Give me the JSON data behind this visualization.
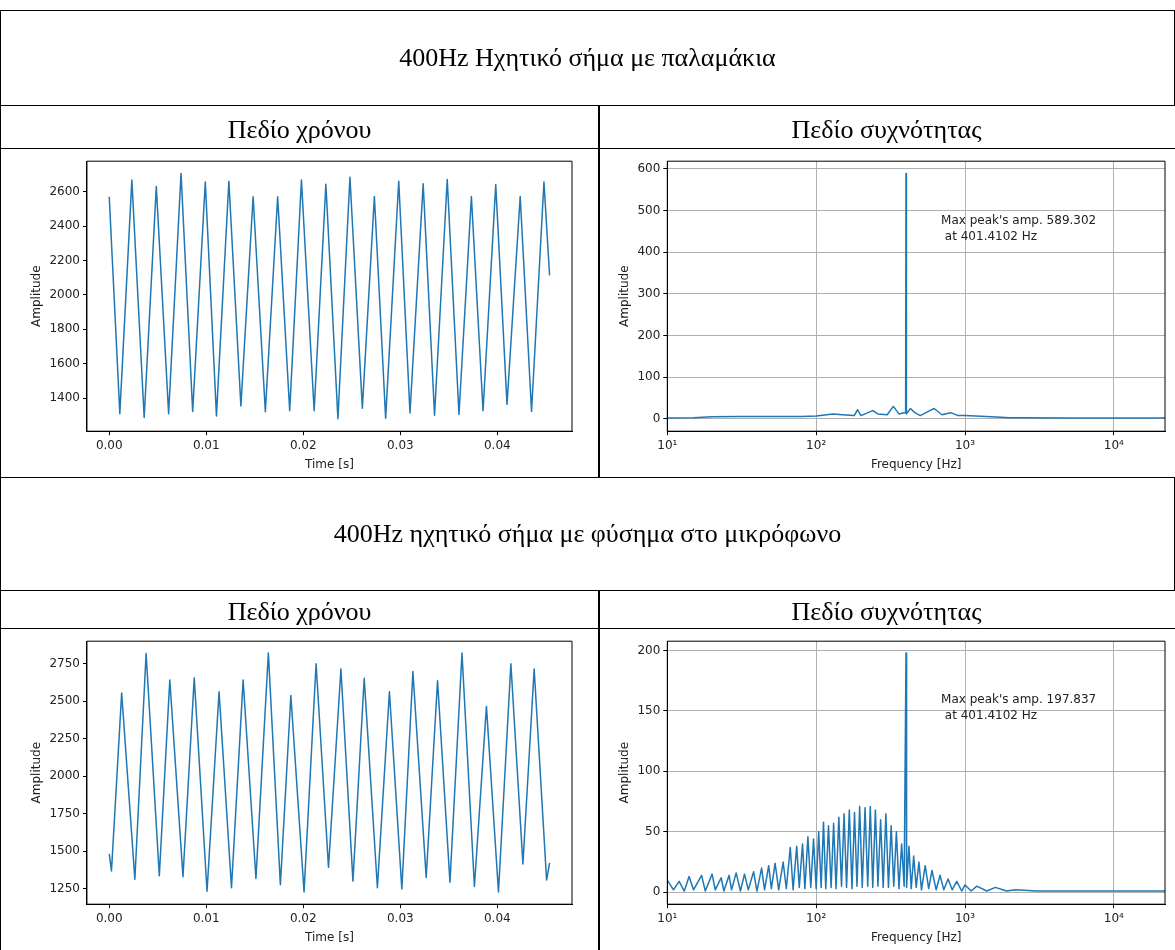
{
  "chart_data": [
    {
      "type": "line",
      "title": "Πεδίο χρόνου",
      "subtitle": "400Hz Ηχητικό σήμα με παλαμάκια",
      "xlabel": "Time [s]",
      "ylabel": "Amplitude",
      "grid": false,
      "legend": false,
      "marker": "none",
      "line_style": "solid",
      "xlim": [
        -0.0023,
        0.0477
      ],
      "ylim": [
        1207,
        2777
      ],
      "xticks": [
        {
          "value": 0,
          "label": "0.00"
        },
        {
          "value": 0.01,
          "label": "0.01"
        },
        {
          "value": 0.02,
          "label": "0.02"
        },
        {
          "value": 0.03,
          "label": "0.03"
        },
        {
          "value": 0.04,
          "label": "0.04"
        }
      ],
      "yticks": [
        1400,
        1600,
        1800,
        2000,
        2200,
        2400,
        2600
      ],
      "series": [
        {
          "color": "#1f77b4",
          "x": [
            0,
            0.00109,
            0.00233,
            0.0036,
            0.00485,
            0.00612,
            0.0074,
            0.0086,
            0.0099,
            0.01105,
            0.01233,
            0.01357,
            0.01483,
            0.01609,
            0.01736,
            0.0186,
            0.01981,
            0.02112,
            0.02233,
            0.02357,
            0.02481,
            0.02609,
            0.02733,
            0.02849,
            0.02984,
            0.031,
            0.03236,
            0.03353,
            0.03484,
            0.03605,
            0.03733,
            0.03853,
            0.03984,
            0.041,
            0.04236,
            0.04353,
            0.04481,
            0.04539
          ],
          "values": [
            2570,
            1309,
            2667,
            1287,
            2630,
            1309,
            2706,
            1322,
            2656,
            1296,
            2660,
            1354,
            2570,
            1320,
            2570,
            1326,
            2667,
            1326,
            2643,
            1280,
            2684,
            1341,
            2572,
            1283,
            2660,
            1313,
            2646,
            1300,
            2670,
            1304,
            2572,
            1326,
            2641,
            1363,
            2572,
            1322,
            2656,
            2113
          ]
        }
      ]
    },
    {
      "type": "line",
      "title": "Πεδίο συχνότητας",
      "xlabel": "Frequency [Hz]",
      "ylabel": "Amplitude",
      "grid": true,
      "legend": false,
      "marker": "none",
      "line_style": "solid",
      "log": "x",
      "xlim": [
        10,
        22050
      ],
      "ylim": [
        -29.5,
        618.7
      ],
      "xticks": [
        {
          "value": 10,
          "label": "10¹"
        },
        {
          "value": 100,
          "label": "10²"
        },
        {
          "value": 1000,
          "label": "10³"
        },
        {
          "value": 10000,
          "label": "10⁴"
        }
      ],
      "yticks": [
        0,
        100,
        200,
        300,
        400,
        500,
        600
      ],
      "annotations": [
        "Max peak's amp. 589.302\n at 401.4102 Hz"
      ],
      "series": [
        {
          "color": "#1f77b4",
          "x": [
            10,
            15,
            20,
            30,
            50,
            80,
            100,
            130,
            150,
            180,
            190,
            200,
            240,
            260,
            300,
            330,
            360,
            390,
            399,
            401.41,
            404,
            430,
            460,
            500,
            580,
            620,
            700,
            800,
            900,
            1000,
            1500,
            2000,
            5000,
            10000,
            22050
          ],
          "values": [
            2,
            3,
            5,
            6,
            6,
            6,
            7,
            12,
            10,
            8,
            22,
            8,
            20,
            12,
            10,
            30,
            12,
            15,
            15,
            589.302,
            12,
            25,
            15,
            8,
            20,
            25,
            10,
            15,
            8,
            8,
            5,
            3,
            2,
            2,
            2
          ]
        }
      ]
    },
    {
      "type": "line",
      "title": "Πεδίο χρόνου",
      "subtitle": "400Hz ηχητικό σήμα με φύσημα στο μικρόφωνο",
      "xlabel": "Time [s]",
      "ylabel": "Amplitude",
      "grid": false,
      "legend": false,
      "marker": "none",
      "line_style": "solid",
      "xlim": [
        -0.0023,
        0.0477
      ],
      "ylim": [
        1145,
        2900
      ],
      "xticks": [
        {
          "value": 0,
          "label": "0.00"
        },
        {
          "value": 0.01,
          "label": "0.01"
        },
        {
          "value": 0.02,
          "label": "0.02"
        },
        {
          "value": 0.03,
          "label": "0.03"
        },
        {
          "value": 0.04,
          "label": "0.04"
        }
      ],
      "yticks": [
        1250,
        1500,
        1750,
        2000,
        2250,
        2500,
        2750
      ],
      "series": [
        {
          "color": "#1f77b4",
          "x": [
            0,
            0.00023,
            0.00128,
            0.00264,
            0.0038,
            0.00516,
            0.00624,
            0.0076,
            0.00876,
            0.01008,
            0.01132,
            0.0126,
            0.0138,
            0.01512,
            0.0164,
            0.01764,
            0.01872,
            0.02008,
            0.02132,
            0.0226,
            0.02388,
            0.02512,
            0.02628,
            0.02764,
            0.02888,
            0.03016,
            0.0313,
            0.03267,
            0.03384,
            0.03512,
            0.03636,
            0.03764,
            0.03888,
            0.04012,
            0.0414,
            0.04264,
            0.0438,
            0.04508,
            0.04539
          ],
          "values": [
            1481,
            1367,
            2554,
            1311,
            2818,
            1335,
            2641,
            1328,
            2655,
            1231,
            2563,
            1255,
            2641,
            1316,
            2821,
            1275,
            2538,
            1226,
            2750,
            1391,
            2714,
            1299,
            2653,
            1255,
            2563,
            1246,
            2697,
            1323,
            2636,
            1292,
            2821,
            1263,
            2465,
            1226,
            2750,
            1413,
            2714,
            1306,
            1420
          ]
        }
      ]
    },
    {
      "type": "line",
      "title": "Πεδίο συχνότητας",
      "xlabel": "Frequency [Hz]",
      "ylabel": "Amplitude",
      "grid": true,
      "legend": false,
      "marker": "none",
      "line_style": "solid",
      "log": "x",
      "xlim": [
        10,
        22050
      ],
      "ylim": [
        -9.9,
        207.7
      ],
      "xticks": [
        {
          "value": 10,
          "label": "10¹"
        },
        {
          "value": 100,
          "label": "10²"
        },
        {
          "value": 1000,
          "label": "10³"
        },
        {
          "value": 10000,
          "label": "10⁴"
        }
      ],
      "yticks": [
        0,
        50,
        100,
        150,
        200
      ],
      "annotations": [
        "Max peak's amp. 197.837\n at 401.4102 Hz"
      ],
      "series": [
        {
          "color": "#1f77b4",
          "x": [
            10,
            11,
            12,
            13,
            14,
            15,
            17,
            18,
            20,
            21,
            23,
            24,
            26,
            27,
            29,
            31,
            33,
            35,
            38,
            40,
            43,
            45,
            48,
            50,
            53,
            56,
            60,
            63,
            67,
            70,
            74,
            77,
            81,
            84,
            88,
            92,
            96,
            100,
            104,
            108,
            112,
            116,
            121,
            126,
            131,
            136,
            142,
            148,
            154,
            160,
            167,
            174,
            181,
            188,
            196,
            204,
            213,
            222,
            231,
            240,
            250,
            260,
            271,
            282,
            294,
            306,
            319,
            332,
            346,
            360,
            375,
            390,
            401.41,
            405,
            420,
            435,
            452,
            470,
            490,
            510,
            540,
            570,
            600,
            640,
            680,
            720,
            770,
            820,
            880,
            950,
            1000,
            1100,
            1200,
            1400,
            1600,
            1900,
            2200,
            3000,
            5000,
            10000,
            22050
          ],
          "values": [
            10,
            2,
            9,
            1,
            13,
            2,
            14,
            1,
            15,
            2,
            12,
            1,
            14,
            2,
            16,
            1,
            15,
            2,
            17,
            1,
            20,
            2,
            22,
            3,
            24,
            2,
            25,
            3,
            37,
            2,
            38,
            4,
            40,
            3,
            46,
            4,
            44,
            3,
            50,
            4,
            58,
            3,
            55,
            4,
            57,
            3,
            62,
            5,
            65,
            4,
            68,
            3,
            66,
            5,
            71,
            4,
            70,
            5,
            71,
            4,
            68,
            5,
            60,
            4,
            65,
            4,
            55,
            5,
            50,
            3,
            40,
            5,
            197.837,
            4,
            38,
            3,
            30,
            4,
            25,
            2,
            22,
            3,
            18,
            2,
            14,
            2,
            11,
            2,
            9,
            1,
            6,
            1,
            5,
            1,
            4,
            1,
            2,
            1,
            1,
            1,
            1
          ]
        }
      ]
    }
  ]
}
